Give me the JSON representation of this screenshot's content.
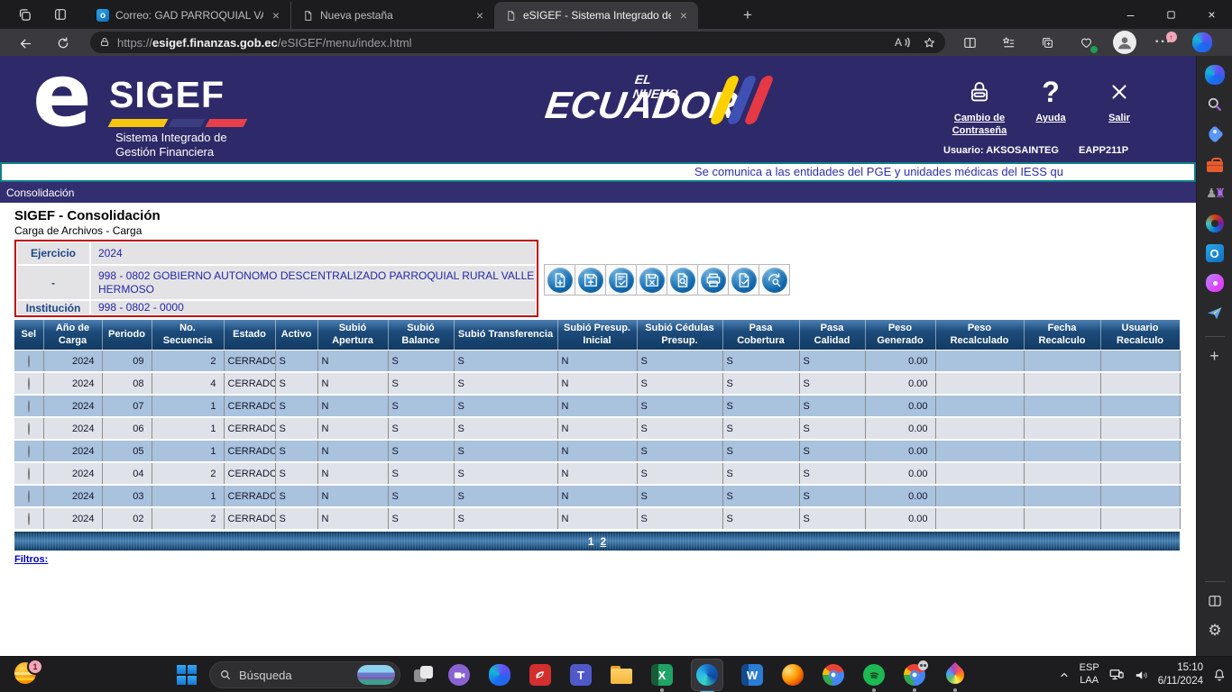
{
  "browser": {
    "tabs": [
      {
        "title": "Correo: GAD PARROQUIAL VALLE",
        "icon": "outlook",
        "active": false
      },
      {
        "title": "Nueva pestaña",
        "icon": "page",
        "active": false
      },
      {
        "title": "eSIGEF - Sistema Integrado de G",
        "icon": "page",
        "active": true
      }
    ],
    "address": {
      "scheme": "https://",
      "host": "esigef.finanzas.gob.ec",
      "path": "/eSIGEF/menu/index.html"
    },
    "window_controls": {
      "minimize": "–",
      "close": "×"
    },
    "more_badge": "↑"
  },
  "esigef_header": {
    "logo": {
      "e": "e",
      "sigef": "SIGEF",
      "subtitle1": "Sistema Integrado de",
      "subtitle2": "Gestión Financiera"
    },
    "ecuador": {
      "top": "EL NUEVO",
      "main": "ECUADOR"
    },
    "actions": [
      {
        "label": "Cambio de Contraseña",
        "icon": "lock"
      },
      {
        "label": "Ayuda",
        "icon": "question"
      },
      {
        "label": "Salir",
        "icon": "close-x"
      }
    ],
    "user_label": "Usuario: AKSOSAINTEG",
    "environment": "EAPP211P"
  },
  "marquee_text": "Se comunica a las entidades del PGE y unidades médicas del IESS qu",
  "menubar_item": "Consolidación",
  "page": {
    "title": "SIGEF - Consolidación",
    "subtitle": "Carga de Archivos - Carga"
  },
  "context_form": {
    "rows": [
      {
        "label": "Ejercicio",
        "value": "2024"
      },
      {
        "label": "-",
        "value": "998 - 0802 GOBIERNO AUTONOMO DESCENTRALIZADO PARROQUIAL RURAL VALLE HERMOSO"
      },
      {
        "label": "Institución",
        "value": "998 - 0802 - 0000"
      }
    ]
  },
  "action_toolbar": {
    "buttons": [
      "new-record",
      "save-record",
      "validate-record",
      "delete-record",
      "view-detail",
      "print",
      "approve-record",
      "search-all"
    ]
  },
  "data_table": {
    "headers": [
      "Sel",
      "Año de Carga",
      "Periodo",
      "No. Secuencia",
      "Estado",
      "Activo",
      "Subió Apertura",
      "Subió Balance",
      "Subió Transferencia",
      "Subió Presup. Inicial",
      "Subió Cédulas Presup.",
      "Pasa Cobertura",
      "Pasa Calidad",
      "Peso Generado",
      "Peso Recalculado",
      "Fecha Recalculo",
      "Usuario Recalculo"
    ],
    "rows": [
      [
        "2024",
        "09",
        "2",
        "CERRADO",
        "S",
        "N",
        "S",
        "S",
        "N",
        "S",
        "S",
        "S",
        "0.00",
        "",
        "",
        ""
      ],
      [
        "2024",
        "08",
        "4",
        "CERRADO",
        "S",
        "N",
        "S",
        "S",
        "N",
        "S",
        "S",
        "S",
        "0.00",
        "",
        "",
        ""
      ],
      [
        "2024",
        "07",
        "1",
        "CERRADO",
        "S",
        "N",
        "S",
        "S",
        "N",
        "S",
        "S",
        "S",
        "0.00",
        "",
        "",
        ""
      ],
      [
        "2024",
        "06",
        "1",
        "CERRADO",
        "S",
        "N",
        "S",
        "S",
        "N",
        "S",
        "S",
        "S",
        "0.00",
        "",
        "",
        ""
      ],
      [
        "2024",
        "05",
        "1",
        "CERRADO",
        "S",
        "N",
        "S",
        "S",
        "N",
        "S",
        "S",
        "S",
        "0.00",
        "",
        "",
        ""
      ],
      [
        "2024",
        "04",
        "2",
        "CERRADO",
        "S",
        "N",
        "S",
        "S",
        "N",
        "S",
        "S",
        "S",
        "0.00",
        "",
        "",
        ""
      ],
      [
        "2024",
        "03",
        "1",
        "CERRADO",
        "S",
        "N",
        "S",
        "S",
        "N",
        "S",
        "S",
        "S",
        "0.00",
        "",
        "",
        ""
      ],
      [
        "2024",
        "02",
        "2",
        "CERRADO",
        "S",
        "N",
        "S",
        "S",
        "N",
        "S",
        "S",
        "S",
        "0.00",
        "",
        "",
        ""
      ]
    ]
  },
  "pagination": {
    "current": "1",
    "links": [
      "2"
    ]
  },
  "filters_label": "Filtros:",
  "taskbar": {
    "badge": "1",
    "search_placeholder": "Búsqueda",
    "apps": [
      {
        "name": "chat",
        "running": false
      },
      {
        "name": "copilot",
        "running": false
      },
      {
        "name": "acrobat",
        "running": false
      },
      {
        "name": "teams",
        "running": false
      },
      {
        "name": "file-explorer",
        "running": false
      },
      {
        "name": "excel",
        "running": true
      },
      {
        "name": "edge",
        "running": true,
        "active": true
      },
      {
        "name": "word",
        "running": false
      },
      {
        "name": "firefox",
        "running": false
      },
      {
        "name": "chrome",
        "running": false
      },
      {
        "name": "spotify",
        "running": true
      },
      {
        "name": "chrome-alt",
        "running": true
      },
      {
        "name": "paint-drop",
        "running": true
      }
    ],
    "language_line1": "ESP",
    "language_line2": "LAA",
    "time": "15:10",
    "date": "6/11/2024"
  },
  "edge_sidebar": {
    "icons": [
      "copilot",
      "search",
      "shopping",
      "tools",
      "games",
      "m365",
      "outlook",
      "designer",
      "send"
    ],
    "bottom_icons": [
      "customize-sidebar",
      "settings"
    ]
  },
  "colors": {
    "header_purple": "#2e2968",
    "accent_teal": "#0d7e88",
    "table_header_blue": "#1d4c7c",
    "row_blue": "#a9c2de",
    "row_gray": "#dfe2e8",
    "form_border_red": "#c00000",
    "link_blue": "#0000cc",
    "toolbar_icon_blue": "#1168ac"
  }
}
